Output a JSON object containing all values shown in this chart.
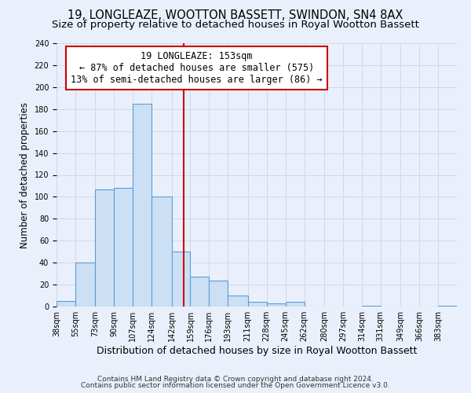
{
  "title": "19, LONGLEAZE, WOOTTON BASSETT, SWINDON, SN4 8AX",
  "subtitle": "Size of property relative to detached houses in Royal Wootton Bassett",
  "xlabel": "Distribution of detached houses by size in Royal Wootton Bassett",
  "ylabel": "Number of detached properties",
  "bin_labels": [
    "38sqm",
    "55sqm",
    "73sqm",
    "90sqm",
    "107sqm",
    "124sqm",
    "142sqm",
    "159sqm",
    "176sqm",
    "193sqm",
    "211sqm",
    "228sqm",
    "245sqm",
    "262sqm",
    "280sqm",
    "297sqm",
    "314sqm",
    "331sqm",
    "349sqm",
    "366sqm",
    "383sqm"
  ],
  "bin_edges": [
    38,
    55,
    73,
    90,
    107,
    124,
    142,
    159,
    176,
    193,
    211,
    228,
    245,
    262,
    280,
    297,
    314,
    331,
    349,
    366,
    383,
    400
  ],
  "bar_heights": [
    5,
    40,
    107,
    108,
    185,
    100,
    50,
    27,
    24,
    10,
    4,
    3,
    4,
    0,
    0,
    0,
    1,
    0,
    0,
    0,
    1
  ],
  "bar_color": "#cce0f5",
  "bar_edge_color": "#5b9bd5",
  "vline_x": 153,
  "vline_color": "#cc0000",
  "annotation_line1": "19 LONGLEAZE: 153sqm",
  "annotation_line2": "← 87% of detached houses are smaller (575)",
  "annotation_line3": "13% of semi-detached houses are larger (86) →",
  "ylim": [
    0,
    240
  ],
  "yticks": [
    0,
    20,
    40,
    60,
    80,
    100,
    120,
    140,
    160,
    180,
    200,
    220,
    240
  ],
  "grid_color": "#d0d8e8",
  "background_color": "#eaf0fb",
  "footer_line1": "Contains HM Land Registry data © Crown copyright and database right 2024.",
  "footer_line2": "Contains public sector information licensed under the Open Government Licence v3.0.",
  "title_fontsize": 10.5,
  "subtitle_fontsize": 9.5,
  "xlabel_fontsize": 9,
  "ylabel_fontsize": 8.5,
  "tick_fontsize": 7,
  "annotation_fontsize": 8.5,
  "footer_fontsize": 6.5
}
